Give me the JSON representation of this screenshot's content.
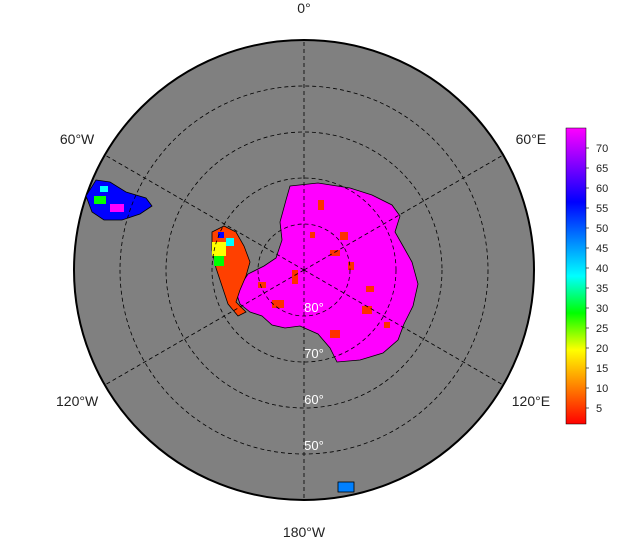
{
  "map": {
    "projection": "south-polar-stereographic",
    "ocean_color": "#808080",
    "grid_style": "dashed",
    "longitude_labels": [
      {
        "key": "lon-0",
        "text": "0°",
        "deg": 0
      },
      {
        "key": "lon-60e",
        "text": "60°E",
        "deg": 60
      },
      {
        "key": "lon-120e",
        "text": "120°E",
        "deg": 120
      },
      {
        "key": "lon-180w",
        "text": "180°W",
        "deg": 180
      },
      {
        "key": "lon-120w",
        "text": "120°W",
        "deg": 240
      },
      {
        "key": "lon-60w",
        "text": "60°W",
        "deg": 300
      }
    ],
    "latitude_labels": [
      {
        "key": "lat-80",
        "text": "80°",
        "lat": -80
      },
      {
        "key": "lat-70",
        "text": "70°",
        "lat": -70
      },
      {
        "key": "lat-60",
        "text": "60°",
        "lat": -60
      },
      {
        "key": "lat-50",
        "text": "50°",
        "lat": -50
      }
    ]
  },
  "colorbar": {
    "ticks": [
      "5",
      "10",
      "15",
      "20",
      "25",
      "30",
      "35",
      "40",
      "45",
      "50",
      "55",
      "60",
      "65",
      "70"
    ],
    "min": 1,
    "max": 75,
    "colors": [
      "#ff0000",
      "#ff8000",
      "#ffff00",
      "#00ff00",
      "#00ffff",
      "#0080ff",
      "#0000ff",
      "#8000ff",
      "#ff00ff"
    ]
  }
}
